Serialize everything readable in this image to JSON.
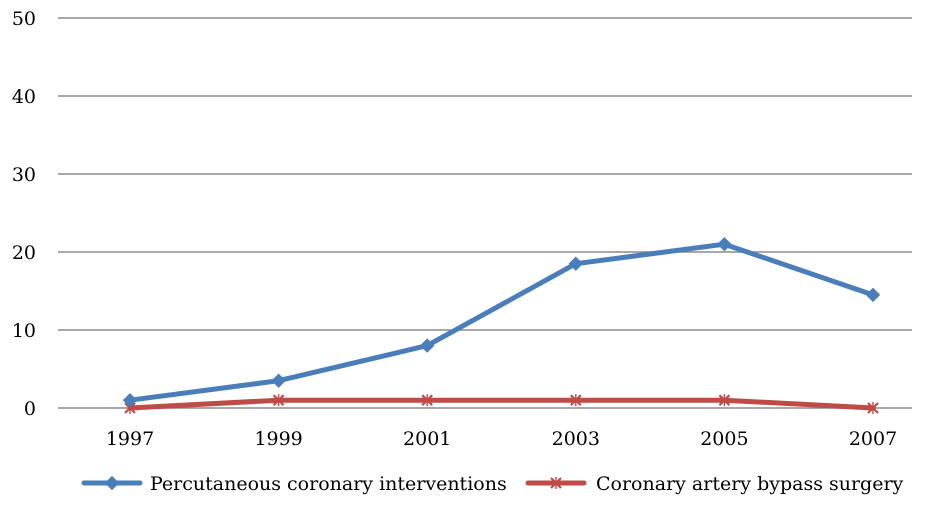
{
  "chart_data": {
    "type": "line",
    "categories": [
      "1997",
      "1999",
      "2001",
      "2003",
      "2005",
      "2007"
    ],
    "series": [
      {
        "name": "Percutaneous coronary interventions",
        "values": [
          1,
          3.5,
          8,
          18.5,
          21,
          14.5
        ],
        "color": "#4a7ebb",
        "marker": "diamond"
      },
      {
        "name": "Coronary artery bypass surgery",
        "values": [
          0,
          1,
          1,
          1,
          1,
          0
        ],
        "color": "#be4b48",
        "marker": "x"
      }
    ],
    "yticks": [
      "0",
      "10",
      "20",
      "30",
      "40",
      "50"
    ],
    "ylim": [
      0,
      50
    ],
    "grid": true,
    "legend_position": "bottom",
    "title": "",
    "xlabel": "",
    "ylabel": ""
  }
}
